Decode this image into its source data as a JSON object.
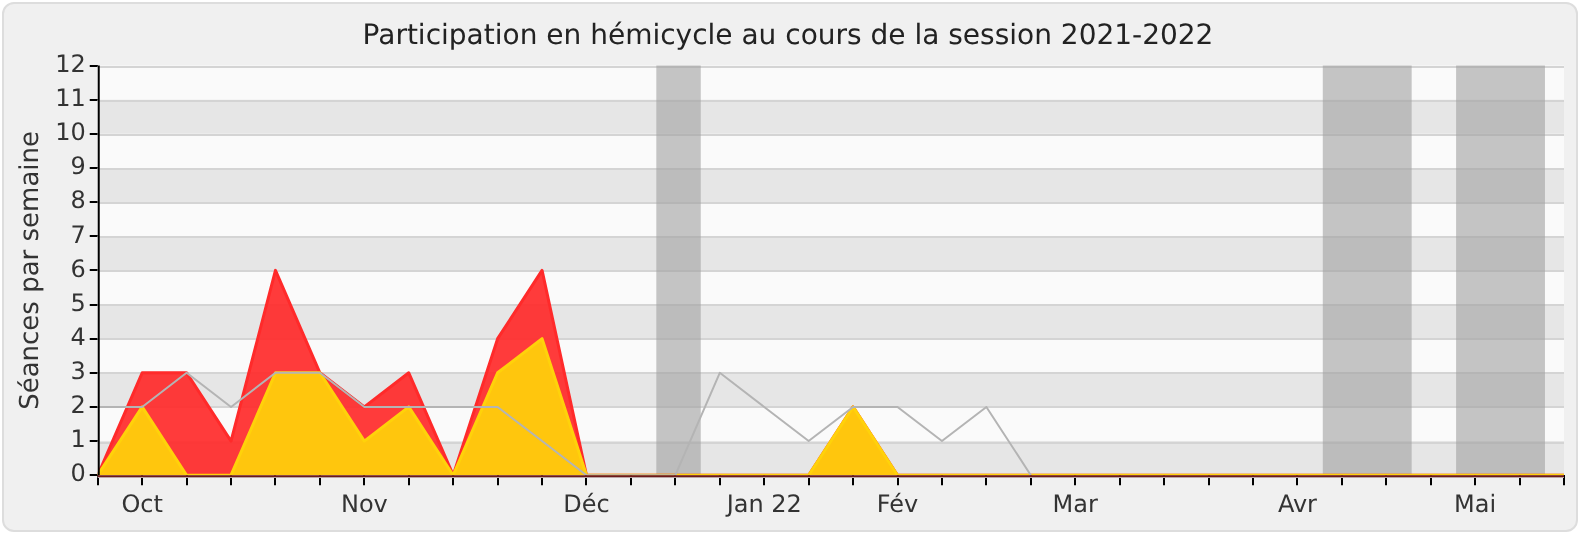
{
  "chart_data": {
    "type": "area",
    "title": "Participation en hémicycle au cours de la session 2021-2022",
    "ylabel": "Séances par semaine",
    "x": [
      "2021-09-28",
      "2021-10-05",
      "2021-10-12",
      "2021-10-19",
      "2021-10-26",
      "2021-11-02",
      "2021-11-09",
      "2021-11-16",
      "2021-11-23",
      "2021-11-30",
      "2021-12-07",
      "2021-12-14",
      "2021-12-21",
      "2021-12-28",
      "2022-01-04",
      "2022-01-11",
      "2022-01-18",
      "2022-01-25",
      "2022-02-01",
      "2022-02-08",
      "2022-02-15",
      "2022-02-22",
      "2022-03-01",
      "2022-03-08",
      "2022-03-15",
      "2022-03-22",
      "2022-03-29",
      "2022-04-05",
      "2022-04-12",
      "2022-04-19",
      "2022-04-26",
      "2022-05-03",
      "2022-05-10",
      "2022-05-17"
    ],
    "series": [
      {
        "type": "line",
        "color": "#b4b4b4",
        "values": [
          2,
          2,
          3,
          2,
          3,
          3,
          2,
          2,
          2,
          2,
          1,
          0,
          0,
          0,
          3,
          2,
          1,
          2,
          2,
          1,
          2,
          0,
          null,
          null,
          null,
          null,
          null,
          null,
          null,
          null,
          null,
          null,
          null,
          null
        ]
      },
      {
        "color": "#ff2a2a",
        "values": [
          0,
          3,
          3,
          1,
          6,
          3,
          2,
          3,
          0,
          4,
          6,
          0,
          0,
          0,
          0,
          0,
          0,
          2,
          0,
          0,
          0,
          0,
          0,
          0,
          0,
          0,
          0,
          0,
          0,
          0,
          0,
          0,
          0,
          0
        ]
      },
      {
        "color": "#ffd20a",
        "values": [
          0,
          2,
          0,
          0,
          3,
          3,
          1,
          2,
          0,
          3,
          4,
          0,
          0,
          0,
          0,
          0,
          0,
          2,
          0,
          0,
          0,
          0,
          0,
          0,
          0,
          0,
          0,
          0,
          0,
          0,
          0,
          0,
          0,
          0
        ]
      }
    ],
    "xlim": [
      "2021-09-28",
      "2022-05-17"
    ],
    "xticks": [
      {
        "value": "2021-09-28",
        "label": null
      },
      {
        "value": "2021-10-05",
        "label": "Oct"
      },
      {
        "value": "2021-10-12",
        "label": null
      },
      {
        "value": "2021-10-19",
        "label": null
      },
      {
        "value": "2021-10-26",
        "label": null
      },
      {
        "value": "2021-11-02",
        "label": null
      },
      {
        "value": "2021-11-09",
        "label": "Nov"
      },
      {
        "value": "2021-11-16",
        "label": null
      },
      {
        "value": "2021-11-23",
        "label": null
      },
      {
        "value": "2021-11-30",
        "label": null
      },
      {
        "value": "2021-12-07",
        "label": null
      },
      {
        "value": "2021-12-14",
        "label": "Déc"
      },
      {
        "value": "2021-12-21",
        "label": null
      },
      {
        "value": "2021-12-28",
        "label": null
      },
      {
        "value": "2022-01-04",
        "label": null
      },
      {
        "value": "2022-01-11",
        "label": "Jan 22"
      },
      {
        "value": "2022-01-18",
        "label": null
      },
      {
        "value": "2022-01-25",
        "label": null
      },
      {
        "value": "2022-02-01",
        "label": "Fév"
      },
      {
        "value": "2022-02-08",
        "label": null
      },
      {
        "value": "2022-02-15",
        "label": null
      },
      {
        "value": "2022-02-22",
        "label": null
      },
      {
        "value": "2022-03-01",
        "label": "Mar"
      },
      {
        "value": "2022-03-08",
        "label": null
      },
      {
        "value": "2022-03-15",
        "label": null
      },
      {
        "value": "2022-03-22",
        "label": null
      },
      {
        "value": "2022-03-29",
        "label": null
      },
      {
        "value": "2022-04-05",
        "label": "Avr"
      },
      {
        "value": "2022-04-12",
        "label": null
      },
      {
        "value": "2022-04-19",
        "label": null
      },
      {
        "value": "2022-04-26",
        "label": null
      },
      {
        "value": "2022-05-03",
        "label": "Mai"
      },
      {
        "value": "2022-05-10",
        "label": null
      },
      {
        "value": "2022-05-17",
        "label": null
      }
    ],
    "ylim": [
      0,
      12
    ],
    "yticks": [
      0,
      1,
      2,
      3,
      4,
      5,
      6,
      7,
      8,
      9,
      10,
      11,
      12
    ],
    "bands": [
      {
        "axis": "x",
        "from": "2021-12-25",
        "to": "2022-01-01",
        "color": "#a0a0a0"
      },
      {
        "axis": "x",
        "from": "2022-04-09",
        "to": "2022-04-23",
        "color": "#a0a0a0"
      },
      {
        "axis": "x",
        "from": "2022-04-30",
        "to": "2022-05-14",
        "color": "#a0a0a0"
      }
    ],
    "grid": "y",
    "legend": false,
    "marker": "none",
    "line_style": "solid"
  }
}
